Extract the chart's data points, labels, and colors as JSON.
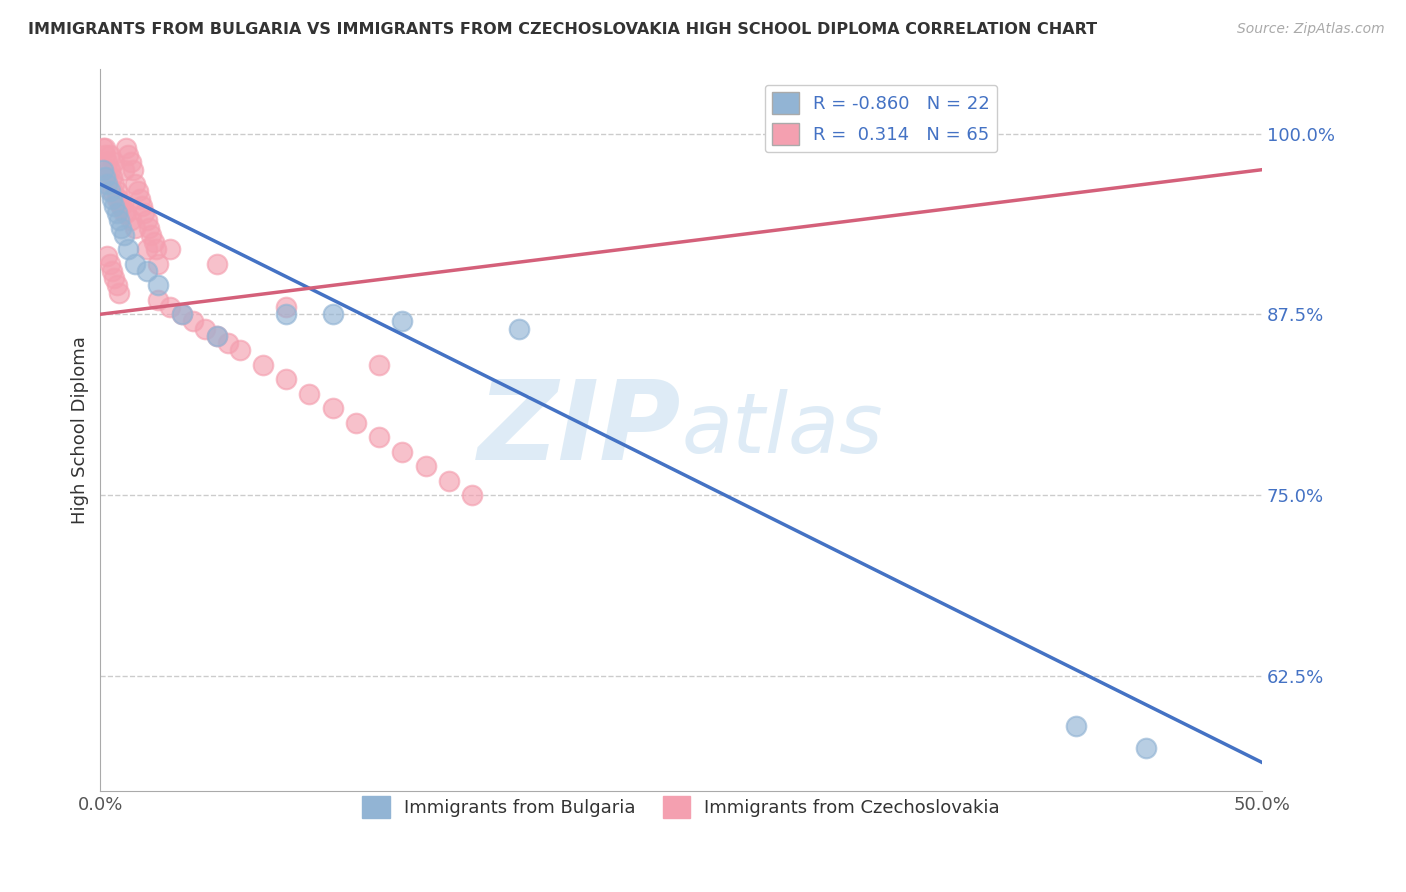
{
  "title": "IMMIGRANTS FROM BULGARIA VS IMMIGRANTS FROM CZECHOSLOVAKIA HIGH SCHOOL DIPLOMA CORRELATION CHART",
  "source": "Source: ZipAtlas.com",
  "ylabel": "High School Diploma",
  "ytick_labels": [
    "62.5%",
    "75.0%",
    "87.5%",
    "100.0%"
  ],
  "ytick_values": [
    0.625,
    0.75,
    0.875,
    1.0
  ],
  "xlim": [
    0.0,
    0.5
  ],
  "ylim": [
    0.545,
    1.045
  ],
  "r_bulgaria": -0.86,
  "n_bulgaria": 22,
  "r_czech": 0.314,
  "n_czech": 65,
  "color_bulgaria": "#92b4d4",
  "color_czech": "#f4a0b0",
  "trendline_bulgaria_color": "#4472c4",
  "trendline_czech_color": "#d4607a",
  "watermark_zip": "ZIP",
  "watermark_atlas": "atlas",
  "background_color": "#ffffff",
  "grid_color": "#cccccc",
  "bul_trendline_x0": 0.0,
  "bul_trendline_y0": 0.965,
  "bul_trendline_x1": 0.5,
  "bul_trendline_y1": 0.565,
  "cze_trendline_x0": 0.0,
  "cze_trendline_y0": 0.875,
  "cze_trendline_x1": 0.5,
  "cze_trendline_y1": 0.975,
  "bulgaria_x": [
    0.001,
    0.002,
    0.003,
    0.004,
    0.005,
    0.006,
    0.007,
    0.008,
    0.009,
    0.01,
    0.012,
    0.015,
    0.02,
    0.025,
    0.035,
    0.05,
    0.08,
    0.1,
    0.13,
    0.18,
    0.45,
    0.42
  ],
  "bulgaria_y": [
    0.975,
    0.97,
    0.965,
    0.96,
    0.955,
    0.95,
    0.945,
    0.94,
    0.935,
    0.93,
    0.92,
    0.91,
    0.905,
    0.895,
    0.875,
    0.86,
    0.875,
    0.875,
    0.87,
    0.865,
    0.575,
    0.59
  ],
  "czech_x": [
    0.001,
    0.002,
    0.003,
    0.004,
    0.005,
    0.006,
    0.007,
    0.008,
    0.009,
    0.01,
    0.011,
    0.012,
    0.013,
    0.014,
    0.015,
    0.016,
    0.017,
    0.018,
    0.019,
    0.02,
    0.021,
    0.022,
    0.023,
    0.024,
    0.003,
    0.004,
    0.005,
    0.006,
    0.007,
    0.008,
    0.025,
    0.03,
    0.035,
    0.04,
    0.045,
    0.05,
    0.055,
    0.06,
    0.07,
    0.08,
    0.09,
    0.1,
    0.11,
    0.12,
    0.13,
    0.14,
    0.15,
    0.16,
    0.02,
    0.025,
    0.003,
    0.005,
    0.007,
    0.009,
    0.011,
    0.013,
    0.015,
    0.002,
    0.004,
    0.006,
    0.01,
    0.03,
    0.05,
    0.08,
    0.12
  ],
  "czech_y": [
    0.99,
    0.985,
    0.98,
    0.975,
    0.97,
    0.965,
    0.96,
    0.955,
    0.95,
    0.945,
    0.99,
    0.985,
    0.98,
    0.975,
    0.965,
    0.96,
    0.955,
    0.95,
    0.945,
    0.94,
    0.935,
    0.93,
    0.925,
    0.92,
    0.915,
    0.91,
    0.905,
    0.9,
    0.895,
    0.89,
    0.885,
    0.88,
    0.875,
    0.87,
    0.865,
    0.86,
    0.855,
    0.85,
    0.84,
    0.83,
    0.82,
    0.81,
    0.8,
    0.79,
    0.78,
    0.77,
    0.76,
    0.75,
    0.92,
    0.91,
    0.97,
    0.96,
    0.955,
    0.95,
    0.945,
    0.94,
    0.935,
    0.99,
    0.985,
    0.98,
    0.975,
    0.92,
    0.91,
    0.88,
    0.84
  ]
}
